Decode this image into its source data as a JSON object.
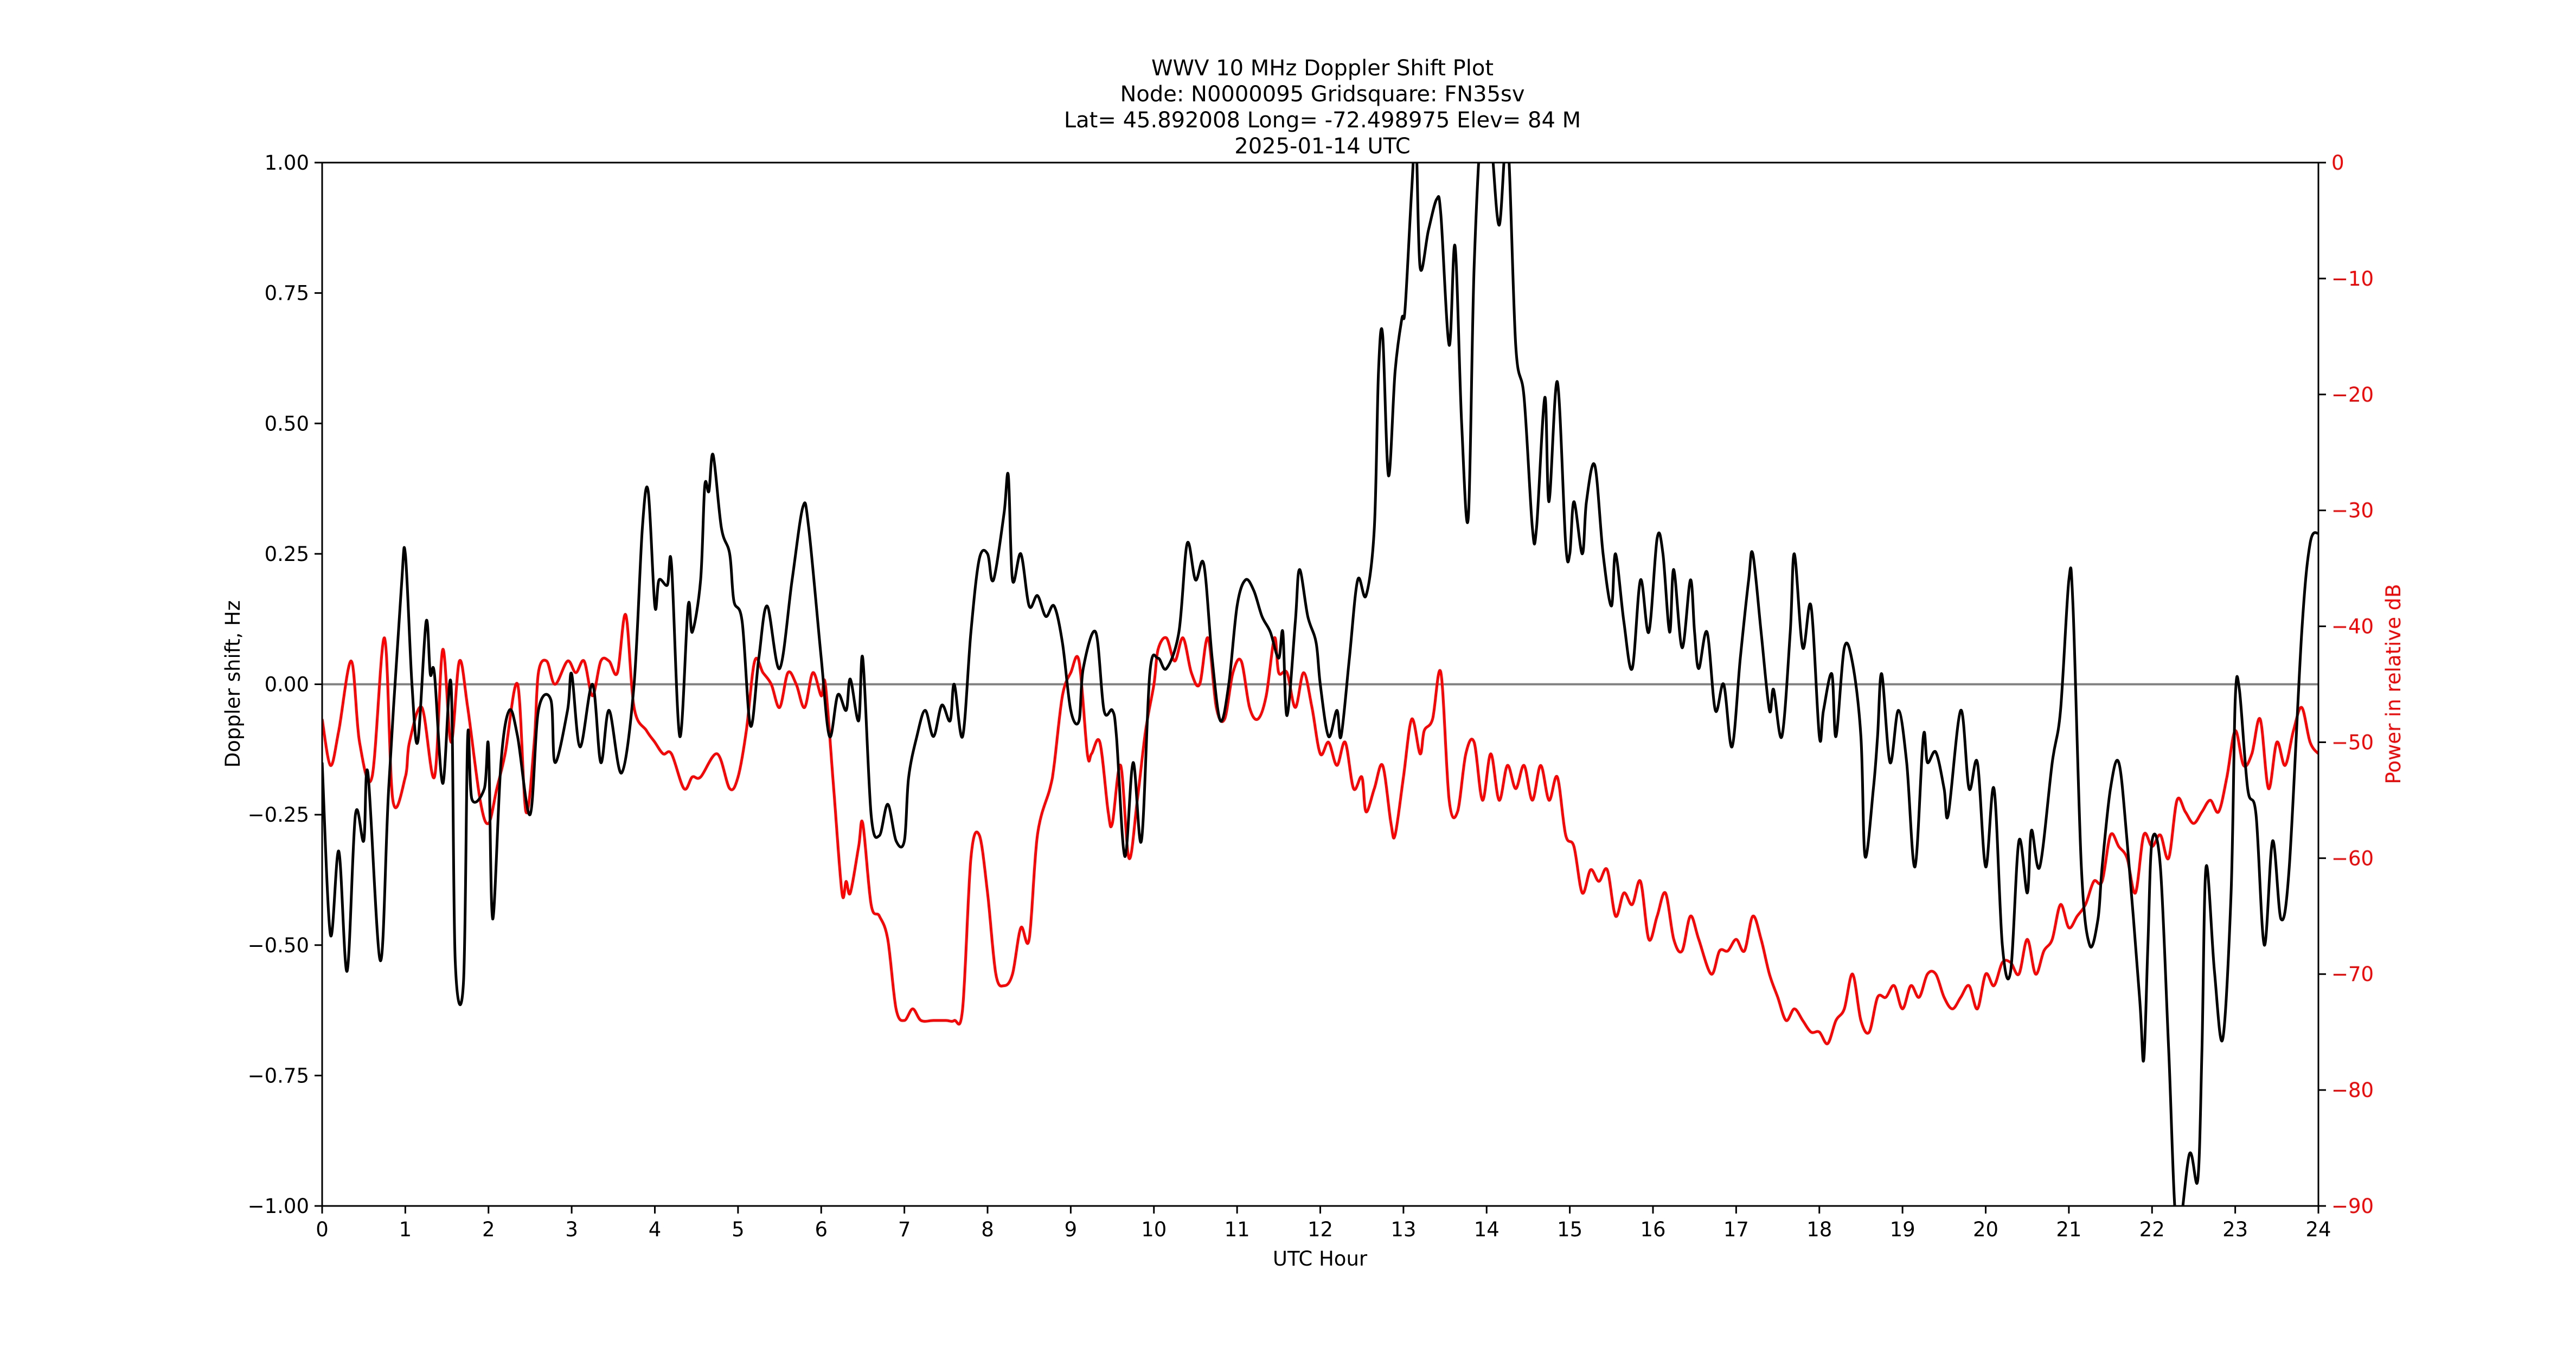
{
  "figure": {
    "title_lines": [
      "WWV 10 MHz Doppler Shift Plot",
      "Node:  N0000095     Gridsquare:  FN35sv",
      "Lat= 45.892008    Long= -72.498975    Elev= 84 M",
      "2025-01-14  UTC"
    ]
  },
  "chart_data": {
    "type": "line",
    "title": "WWV 10 MHz Doppler Shift Plot",
    "subtitle": "Node:  N0000095     Gridsquare:  FN35sv | Lat= 45.892008    Long= -72.498975    Elev= 84 M | 2025-01-14  UTC",
    "xlabel": "UTC Hour",
    "ylabel": "Doppler shift, Hz",
    "y2label": "Power in relative dB",
    "xlim": [
      0,
      24
    ],
    "ylim": [
      -1.0,
      1.0
    ],
    "y2lim": [
      -90,
      0
    ],
    "xticks": [
      "0",
      "1",
      "2",
      "3",
      "4",
      "5",
      "6",
      "7",
      "8",
      "9",
      "10",
      "11",
      "12",
      "13",
      "14",
      "15",
      "16",
      "17",
      "18",
      "19",
      "20",
      "21",
      "22",
      "23",
      "24"
    ],
    "yticks": [
      "−1.00",
      "−0.75",
      "−0.50",
      "−0.25",
      "0.00",
      "0.25",
      "0.50",
      "0.75",
      "1.00"
    ],
    "y2ticks": [
      "0",
      "−10",
      "−20",
      "−30",
      "−40",
      "−50",
      "−60",
      "−70",
      "−80",
      "−90"
    ],
    "grid": false,
    "zero_line": {
      "y": 0.0,
      "color": "#808080"
    },
    "legend": null,
    "colors": {
      "doppler": "#000000",
      "power": "#ff0000",
      "axis": "#000000",
      "power_axis_text": "#ff0000"
    },
    "series": [
      {
        "name": "Doppler shift (Hz)",
        "axis": "left",
        "color": "#000000",
        "x": [
          0,
          0.1,
          0.2,
          0.3,
          0.4,
          0.5,
          0.55,
          0.7,
          0.8,
          0.95,
          1.0,
          1.08,
          1.15,
          1.25,
          1.3,
          1.35,
          1.45,
          1.55,
          1.6,
          1.7,
          1.75,
          1.8,
          1.95,
          2.0,
          2.05,
          2.15,
          2.25,
          2.35,
          2.5,
          2.6,
          2.75,
          2.8,
          2.95,
          3.0,
          3.1,
          3.25,
          3.35,
          3.45,
          3.6,
          3.75,
          3.85,
          3.92,
          4.0,
          4.05,
          4.15,
          4.2,
          4.3,
          4.4,
          4.45,
          4.55,
          4.6,
          4.65,
          4.7,
          4.8,
          4.9,
          4.95,
          5.05,
          5.15,
          5.25,
          5.35,
          5.5,
          5.65,
          5.78,
          5.85,
          6.0,
          6.1,
          6.2,
          6.3,
          6.35,
          6.45,
          6.5,
          6.6,
          6.7,
          6.8,
          6.9,
          7.0,
          7.05,
          7.15,
          7.25,
          7.35,
          7.45,
          7.55,
          7.6,
          7.7,
          7.8,
          7.9,
          8.0,
          8.05,
          8.1,
          8.2,
          8.25,
          8.3,
          8.4,
          8.5,
          8.6,
          8.7,
          8.8,
          8.9,
          9.0,
          9.1,
          9.15,
          9.3,
          9.4,
          9.5,
          9.55,
          9.65,
          9.75,
          9.85,
          9.95,
          10.05,
          10.15,
          10.3,
          10.4,
          10.5,
          10.6,
          10.7,
          10.8,
          10.9,
          11.0,
          11.1,
          11.2,
          11.3,
          11.4,
          11.5,
          11.55,
          11.6,
          11.7,
          11.75,
          11.85,
          11.95,
          12.0,
          12.1,
          12.2,
          12.25,
          12.35,
          12.45,
          12.55,
          12.65,
          12.7,
          12.75,
          12.82,
          12.9,
          12.98,
          13.02,
          13.1,
          13.15,
          13.2,
          13.3,
          13.4,
          13.45,
          13.55,
          13.62,
          13.7,
          13.78,
          13.85,
          13.95,
          14.05,
          14.15,
          14.25,
          14.35,
          14.45,
          14.55,
          14.6,
          14.7,
          14.75,
          14.85,
          14.95,
          15.0,
          15.05,
          15.15,
          15.2,
          15.3,
          15.4,
          15.5,
          15.55,
          15.65,
          15.75,
          15.85,
          15.95,
          16.05,
          16.12,
          16.2,
          16.25,
          16.35,
          16.45,
          16.5,
          16.55,
          16.65,
          16.75,
          16.85,
          16.95,
          17.05,
          17.15,
          17.2,
          17.3,
          17.4,
          17.45,
          17.55,
          17.65,
          17.7,
          17.8,
          17.9,
          18.0,
          18.05,
          18.15,
          18.2,
          18.3,
          18.4,
          18.5,
          18.55,
          18.65,
          18.7,
          18.75,
          18.85,
          18.95,
          19.05,
          19.15,
          19.25,
          19.3,
          19.4,
          19.5,
          19.55,
          19.7,
          19.8,
          19.9,
          20.0,
          20.1,
          20.2,
          20.3,
          20.4,
          20.5,
          20.55,
          20.65,
          20.8,
          20.9,
          21.0,
          21.05,
          21.15,
          21.25,
          21.35,
          21.4,
          21.5,
          21.6,
          21.7,
          21.85,
          21.9,
          21.95,
          22.0,
          22.1,
          22.2,
          22.3,
          22.45,
          22.55,
          22.6,
          22.65,
          22.75,
          22.85,
          22.95,
          23.0,
          23.05,
          23.15,
          23.25,
          23.35,
          23.45,
          23.55,
          23.65,
          23.8,
          23.9,
          24.0
        ],
        "values": [
          -0.15,
          -0.48,
          -0.32,
          -0.55,
          -0.25,
          -0.3,
          -0.17,
          -0.53,
          -0.2,
          0.18,
          0.25,
          0.0,
          -0.11,
          0.12,
          0.02,
          0.02,
          -0.19,
          0.0,
          -0.53,
          -0.57,
          -0.1,
          -0.22,
          -0.2,
          -0.12,
          -0.45,
          -0.15,
          -0.05,
          -0.1,
          -0.25,
          -0.05,
          -0.03,
          -0.15,
          -0.05,
          0.02,
          -0.12,
          0.0,
          -0.15,
          -0.05,
          -0.17,
          0.0,
          0.3,
          0.37,
          0.15,
          0.2,
          0.19,
          0.23,
          -0.1,
          0.15,
          0.1,
          0.2,
          0.38,
          0.37,
          0.44,
          0.3,
          0.25,
          0.16,
          0.12,
          -0.08,
          0.05,
          0.15,
          0.03,
          0.2,
          0.34,
          0.3,
          0.05,
          -0.1,
          -0.02,
          -0.05,
          0.01,
          -0.07,
          0.05,
          -0.25,
          -0.29,
          -0.23,
          -0.3,
          -0.3,
          -0.18,
          -0.1,
          -0.05,
          -0.1,
          -0.04,
          -0.07,
          0.0,
          -0.1,
          0.1,
          0.24,
          0.25,
          0.2,
          0.22,
          0.33,
          0.4,
          0.2,
          0.25,
          0.15,
          0.17,
          0.13,
          0.15,
          0.08,
          -0.05,
          -0.07,
          0.03,
          0.1,
          -0.05,
          -0.05,
          -0.1,
          -0.33,
          -0.15,
          -0.3,
          0.02,
          0.05,
          0.03,
          0.1,
          0.27,
          0.2,
          0.23,
          0.05,
          -0.07,
          0.0,
          0.15,
          0.2,
          0.18,
          0.13,
          0.1,
          0.05,
          0.1,
          -0.06,
          0.12,
          0.22,
          0.13,
          0.08,
          0.0,
          -0.1,
          -0.05,
          -0.1,
          0.05,
          0.2,
          0.17,
          0.3,
          0.6,
          0.67,
          0.4,
          0.6,
          0.7,
          0.72,
          0.95,
          1.05,
          0.8,
          0.87,
          0.93,
          0.9,
          0.65,
          0.84,
          0.5,
          0.32,
          0.8,
          1.1,
          1.05,
          0.88,
          1.05,
          0.65,
          0.55,
          0.3,
          0.3,
          0.55,
          0.35,
          0.58,
          0.27,
          0.25,
          0.35,
          0.25,
          0.35,
          0.42,
          0.25,
          0.15,
          0.25,
          0.12,
          0.03,
          0.2,
          0.1,
          0.28,
          0.25,
          0.1,
          0.22,
          0.07,
          0.2,
          0.1,
          0.03,
          0.1,
          -0.05,
          0.0,
          -0.12,
          0.05,
          0.2,
          0.25,
          0.1,
          -0.05,
          -0.01,
          -0.1,
          0.1,
          0.25,
          0.07,
          0.15,
          -0.1,
          -0.05,
          0.02,
          -0.1,
          0.07,
          0.04,
          -0.1,
          -0.33,
          -0.2,
          -0.1,
          0.02,
          -0.15,
          -0.05,
          -0.15,
          -0.35,
          -0.1,
          -0.15,
          -0.13,
          -0.2,
          -0.25,
          -0.05,
          -0.2,
          -0.15,
          -0.35,
          -0.2,
          -0.5,
          -0.55,
          -0.3,
          -0.4,
          -0.28,
          -0.35,
          -0.15,
          -0.05,
          0.2,
          0.15,
          -0.35,
          -0.5,
          -0.45,
          -0.35,
          -0.2,
          -0.15,
          -0.3,
          -0.6,
          -0.72,
          -0.5,
          -0.3,
          -0.35,
          -0.7,
          -1.05,
          -0.9,
          -0.95,
          -0.7,
          -0.35,
          -0.55,
          -0.68,
          -0.4,
          -0.03,
          -0.01,
          -0.2,
          -0.25,
          -0.5,
          -0.3,
          -0.45,
          -0.35,
          0.1,
          0.27,
          0.29
        ]
      },
      {
        "name": "Power (relative dB)",
        "axis": "right",
        "color": "#ff0000",
        "x": [
          0,
          0.1,
          0.2,
          0.35,
          0.45,
          0.6,
          0.75,
          0.85,
          1.0,
          1.05,
          1.2,
          1.35,
          1.45,
          1.55,
          1.65,
          1.75,
          1.9,
          2.0,
          2.1,
          2.2,
          2.35,
          2.45,
          2.55,
          2.6,
          2.7,
          2.8,
          2.95,
          3.05,
          3.15,
          3.25,
          3.35,
          3.45,
          3.55,
          3.65,
          3.75,
          3.9,
          4.0,
          4.1,
          4.2,
          4.35,
          4.45,
          4.55,
          4.75,
          4.9,
          5.0,
          5.1,
          5.2,
          5.3,
          5.4,
          5.5,
          5.6,
          5.7,
          5.8,
          5.9,
          6.0,
          6.05,
          6.15,
          6.25,
          6.3,
          6.35,
          6.45,
          6.5,
          6.6,
          6.7,
          6.8,
          6.9,
          7.0,
          7.1,
          7.2,
          7.35,
          7.5,
          7.6,
          7.7,
          7.8,
          7.9,
          8.0,
          8.1,
          8.2,
          8.3,
          8.4,
          8.5,
          8.6,
          8.75,
          8.8,
          8.9,
          9.0,
          9.1,
          9.2,
          9.25,
          9.35,
          9.45,
          9.5,
          9.6,
          9.7,
          9.8,
          9.9,
          10.0,
          10.05,
          10.15,
          10.25,
          10.35,
          10.45,
          10.55,
          10.65,
          10.75,
          10.85,
          10.95,
          11.05,
          11.15,
          11.25,
          11.35,
          11.45,
          11.5,
          11.6,
          11.7,
          11.8,
          11.9,
          12.0,
          12.1,
          12.2,
          12.3,
          12.4,
          12.5,
          12.55,
          12.65,
          12.75,
          12.85,
          12.9,
          13.0,
          13.1,
          13.2,
          13.25,
          13.35,
          13.45,
          13.55,
          13.65,
          13.75,
          13.85,
          13.95,
          14.05,
          14.15,
          14.25,
          14.35,
          14.45,
          14.55,
          14.65,
          14.75,
          14.85,
          14.95,
          15.05,
          15.15,
          15.25,
          15.35,
          15.45,
          15.55,
          15.65,
          15.75,
          15.85,
          15.95,
          16.05,
          16.15,
          16.25,
          16.35,
          16.45,
          16.55,
          16.7,
          16.8,
          16.9,
          17.0,
          17.1,
          17.2,
          17.3,
          17.4,
          17.5,
          17.6,
          17.7,
          17.8,
          17.9,
          18.0,
          18.1,
          18.2,
          18.3,
          18.4,
          18.5,
          18.6,
          18.7,
          18.8,
          18.9,
          19.0,
          19.1,
          19.2,
          19.3,
          19.4,
          19.5,
          19.6,
          19.7,
          19.8,
          19.9,
          20.0,
          20.1,
          20.2,
          20.3,
          20.4,
          20.5,
          20.6,
          20.7,
          20.8,
          20.9,
          21.0,
          21.1,
          21.2,
          21.3,
          21.4,
          21.5,
          21.6,
          21.7,
          21.8,
          21.9,
          22.0,
          22.1,
          22.2,
          22.3,
          22.4,
          22.5,
          22.6,
          22.7,
          22.8,
          22.9,
          23.0,
          23.1,
          23.2,
          23.3,
          23.4,
          23.5,
          23.6,
          23.7,
          23.8,
          23.9,
          24.0
        ],
        "values": [
          -48,
          -52,
          -49,
          -43,
          -50,
          -53,
          -41,
          -55,
          -53,
          -50,
          -47,
          -53,
          -42,
          -50,
          -43,
          -47,
          -55,
          -57,
          -54,
          -51,
          -45,
          -56,
          -50,
          -44,
          -43,
          -45,
          -43,
          -44,
          -43,
          -46,
          -43,
          -43,
          -44,
          -39,
          -47,
          -49,
          -50,
          -51,
          -51,
          -54,
          -53,
          -53,
          -51,
          -54,
          -53,
          -49,
          -43,
          -44,
          -45,
          -47,
          -44,
          -45,
          -47,
          -44,
          -46,
          -45,
          -54,
          -63,
          -62,
          -63,
          -59,
          -57,
          -64,
          -65,
          -67,
          -73,
          -74,
          -73,
          -74,
          -74,
          -74,
          -74,
          -73,
          -60,
          -58,
          -63,
          -70,
          -71,
          -70,
          -66,
          -67,
          -58,
          -54,
          -52,
          -46,
          -44,
          -43,
          -51,
          -51,
          -50,
          -56,
          -57,
          -52,
          -60,
          -55,
          -49,
          -45,
          -42,
          -41,
          -43,
          -41,
          -44,
          -45,
          -41,
          -47,
          -48,
          -44,
          -43,
          -47,
          -48,
          -46,
          -41,
          -44,
          -44,
          -47,
          -44,
          -47,
          -51,
          -50,
          -52,
          -50,
          -54,
          -53,
          -56,
          -54,
          -52,
          -57,
          -58,
          -53,
          -48,
          -51,
          -49,
          -48,
          -44,
          -55,
          -56,
          -51,
          -50,
          -55,
          -51,
          -55,
          -52,
          -54,
          -52,
          -55,
          -52,
          -55,
          -53,
          -58,
          -59,
          -63,
          -61,
          -62,
          -61,
          -65,
          -63,
          -64,
          -62,
          -67,
          -65,
          -63,
          -67,
          -68,
          -65,
          -67,
          -70,
          -68,
          -68,
          -67,
          -68,
          -65,
          -67,
          -70,
          -72,
          -74,
          -73,
          -74,
          -75,
          -75,
          -76,
          -74,
          -73,
          -70,
          -74,
          -75,
          -72,
          -72,
          -71,
          -73,
          -71,
          -72,
          -70,
          -70,
          -72,
          -73,
          -72,
          -71,
          -73,
          -70,
          -71,
          -69,
          -69,
          -70,
          -67,
          -70,
          -68,
          -67,
          -64,
          -66,
          -65,
          -64,
          -62,
          -62,
          -58,
          -59,
          -60,
          -63,
          -58,
          -59,
          -58,
          -60,
          -55,
          -56,
          -57,
          -56,
          -55,
          -56,
          -53,
          -49,
          -52,
          -51,
          -48,
          -54,
          -50,
          -52,
          -49,
          -47,
          -50,
          -51
        ]
      }
    ]
  }
}
